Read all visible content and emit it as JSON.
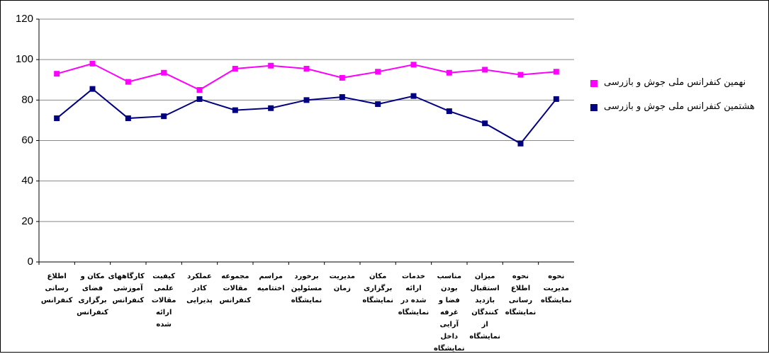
{
  "chart_data": {
    "type": "line",
    "categories": [
      "اطلاع رسانی کنفرانس",
      "مکان و فضای برگزاری کنفرانس",
      "کارگاههای آموزشی کنفرانس",
      "کیفیت علمی مقالات ارائه شده",
      "عملکرد کادر پذیرایی",
      "مجموعه مقالات کنفرانس",
      "مراسم اختتامیه",
      "برخورد مسئولین نمایشگاه",
      "مدیریت زمان",
      "مکان برگزاری نمایشگاه",
      "خدمات ارائه شده در نمایشگاه",
      "مناسب بودن فضا و غرفه آرایی داخل نمایشگاه",
      "میزان استقبال بازدید کنندگان از نمایشگاه",
      "نحوه اطلاع رسانی نمایشگاه",
      "نحوه مدیریت نمایشگاه"
    ],
    "series": [
      {
        "name": "نهمین کنفرانس ملی جوش و بازرسی",
        "color": "#ff00ff",
        "values": [
          93,
          98,
          89,
          93.5,
          85,
          95.5,
          97,
          95.5,
          91,
          94,
          97.5,
          93.5,
          95,
          92.5,
          94
        ]
      },
      {
        "name": "هشتمین کنفرانس ملی جوش و بازرسی",
        "color": "#000080",
        "values": [
          71,
          85.5,
          71,
          72,
          80.5,
          75,
          76,
          80,
          81.5,
          78,
          82,
          74.5,
          68.5,
          58.5,
          80.5
        ]
      }
    ],
    "ylim": [
      0,
      120
    ],
    "yticks": [
      0,
      20,
      40,
      60,
      80,
      100,
      120
    ],
    "grid": true,
    "legend": "right"
  }
}
